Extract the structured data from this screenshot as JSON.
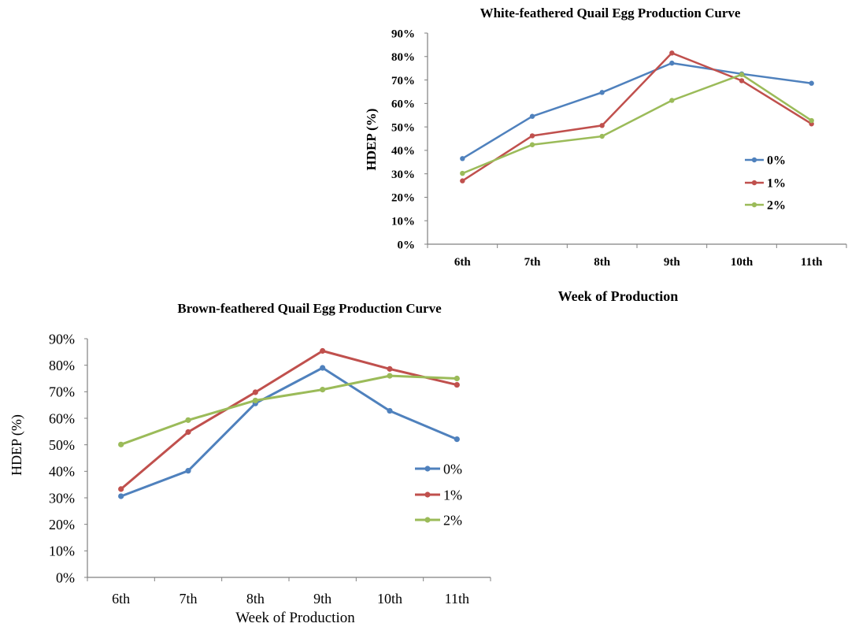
{
  "chart_data": [
    {
      "type": "line",
      "title": "White-feathered  Quail Egg Production  Curve",
      "xlabel": "Week of Production",
      "ylabel": "HDEP (%)",
      "categories": [
        "6th",
        "7th",
        "8th",
        "9th",
        "10th",
        "11th"
      ],
      "ylim": [
        0,
        90
      ],
      "yticks": [
        "0%",
        "10%",
        "20%",
        "30%",
        "40%",
        "50%",
        "60%",
        "70%",
        "80%",
        "90%"
      ],
      "grid": false,
      "legend_position": "right, mid-lower",
      "series": [
        {
          "name": "0%",
          "color": "#4f81bd",
          "values": [
            36.5,
            54.5,
            64.7,
            77.2,
            72.6,
            68.6
          ]
        },
        {
          "name": "1%",
          "color": "#c0504d",
          "values": [
            27.0,
            46.2,
            50.6,
            81.5,
            69.7,
            51.3
          ]
        },
        {
          "name": "2%",
          "color": "#9bbb59",
          "values": [
            30.2,
            42.4,
            46.0,
            61.3,
            72.3,
            52.7
          ]
        }
      ]
    },
    {
      "type": "line",
      "title": "Brown-feathered Quail Egg Production Curve",
      "xlabel": "Week of Production",
      "ylabel": "HDEP (%)",
      "categories": [
        "6th",
        "7th",
        "8th",
        "9th",
        "10th",
        "11th"
      ],
      "ylim": [
        0,
        90
      ],
      "yticks": [
        "0%",
        "10%",
        "20%",
        "30%",
        "40%",
        "50%",
        "60%",
        "70%",
        "80%",
        "90%"
      ],
      "grid": false,
      "legend_position": "right, mid-lower",
      "series": [
        {
          "name": "0%",
          "color": "#4f81bd",
          "values": [
            30.6,
            40.2,
            65.6,
            79.0,
            62.8,
            52.1
          ]
        },
        {
          "name": "1%",
          "color": "#c0504d",
          "values": [
            33.3,
            54.8,
            69.8,
            85.4,
            78.6,
            72.6
          ]
        },
        {
          "name": "2%",
          "color": "#9bbb59",
          "values": [
            50.1,
            59.3,
            66.7,
            70.8,
            76.0,
            75.0
          ]
        }
      ]
    }
  ]
}
